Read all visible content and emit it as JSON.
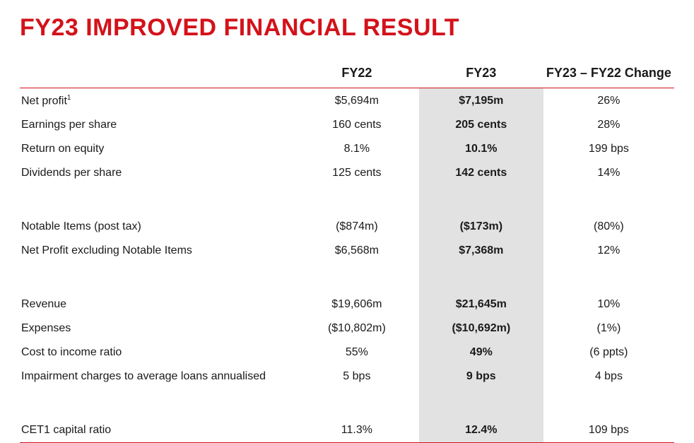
{
  "title": "FY23 IMPROVED FINANCIAL RESULT",
  "colors": {
    "accent": "#d3121a",
    "highlight_bg": "#e2e2e2",
    "text": "#1a1a1a",
    "background": "#ffffff"
  },
  "table": {
    "headers": {
      "label": "",
      "fy22": "FY22",
      "fy23": "FY23",
      "change": "FY23 – FY22 Change"
    },
    "column_widths_pct": [
      42,
      19,
      19,
      20
    ],
    "header_fontsize_pt": 18,
    "body_fontsize_pt": 16,
    "rows": [
      {
        "label": "Net profit",
        "footnote": "1",
        "fy22": "$5,694m",
        "fy23": "$7,195m",
        "change": "26%"
      },
      {
        "label": "Earnings per share",
        "fy22": "160 cents",
        "fy23": "205 cents",
        "change": "28%"
      },
      {
        "label": "Return on equity",
        "fy22": "8.1%",
        "fy23": "10.1%",
        "change": "199 bps"
      },
      {
        "label": "Dividends per share",
        "fy22": "125 cents",
        "fy23": "142 cents",
        "change": "14%"
      },
      {
        "spacer": true
      },
      {
        "label": "Notable Items (post tax)",
        "fy22": "($874m)",
        "fy23": "($173m)",
        "change": "(80%)"
      },
      {
        "label": "Net Profit excluding Notable Items",
        "fy22": "$6,568m",
        "fy23": "$7,368m",
        "change": "12%"
      },
      {
        "spacer": true
      },
      {
        "label": "Revenue",
        "fy22": "$19,606m",
        "fy23": "$21,645m",
        "change": "10%"
      },
      {
        "label": "Expenses",
        "fy22": "($10,802m)",
        "fy23": "($10,692m)",
        "change": "(1%)"
      },
      {
        "label": "Cost to income ratio",
        "fy22": "55%",
        "fy23": "49%",
        "change": "(6 ppts)"
      },
      {
        "label": "Impairment charges to average loans annualised",
        "fy22": "5 bps",
        "fy23": "9 bps",
        "change": "4 bps"
      },
      {
        "spacer": true
      },
      {
        "label": "CET1 capital ratio",
        "fy22": "11.3%",
        "fy23": "12.4%",
        "change": "109 bps"
      }
    ]
  }
}
